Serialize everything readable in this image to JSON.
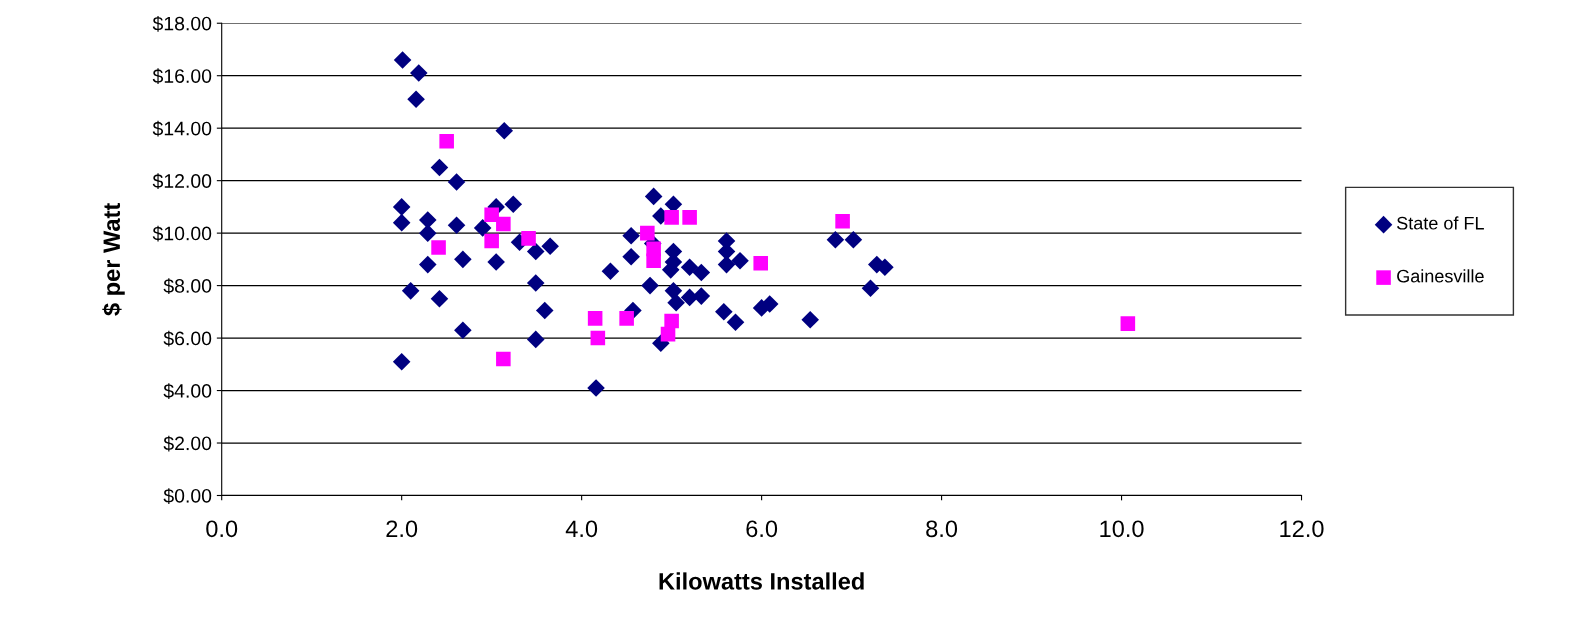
{
  "chart_data": {
    "type": "scatter",
    "xlabel": "Kilowatts Installed",
    "ylabel": "$ per Watt",
    "xlim": [
      0,
      12
    ],
    "xticks": [
      {
        "value": 0,
        "label": "0.0"
      },
      {
        "value": 2,
        "label": "2.0"
      },
      {
        "value": 4,
        "label": "4.0"
      },
      {
        "value": 6,
        "label": "6.0"
      },
      {
        "value": 8,
        "label": "8.0"
      },
      {
        "value": 10,
        "label": "10.0"
      },
      {
        "value": 12,
        "label": "12.0"
      }
    ],
    "ylim": [
      0,
      18
    ],
    "yticks": [
      {
        "value": 0,
        "label": "$0.00"
      },
      {
        "value": 2,
        "label": "$2.00"
      },
      {
        "value": 4,
        "label": "$4.00"
      },
      {
        "value": 6,
        "label": "$6.00"
      },
      {
        "value": 8,
        "label": "$8.00"
      },
      {
        "value": 10,
        "label": "$10.00"
      },
      {
        "value": 12,
        "label": "$12.00"
      },
      {
        "value": 14,
        "label": "$14.00"
      },
      {
        "value": 16,
        "label": "$16.00"
      },
      {
        "value": 18,
        "label": "$18.00"
      }
    ],
    "grid": "y",
    "legend": "right",
    "series": [
      {
        "name": "State of FL",
        "color": "#000080",
        "marker": "diamond",
        "x": [
          2.01,
          2.19,
          2.16,
          3.14,
          2.42,
          2.61,
          2.0,
          2.0,
          2.29,
          2.29,
          2.61,
          2.9,
          3.05,
          3.24,
          2.29,
          2.68,
          3.05,
          2.1,
          2.42,
          2.68,
          2.0,
          3.31,
          3.49,
          3.65,
          3.49,
          3.59,
          3.49,
          4.16,
          4.32,
          4.8,
          5.02,
          4.88,
          4.55,
          4.55,
          4.79,
          4.76,
          4.57,
          4.88,
          5.02,
          5.02,
          4.99,
          5.02,
          5.05,
          5.2,
          5.33,
          5.2,
          5.33,
          5.61,
          5.61,
          5.61,
          5.76,
          5.58,
          5.71,
          6.0,
          6.09,
          6.54,
          6.82,
          7.02,
          7.21,
          7.28,
          7.37
        ],
        "values": [
          16.6,
          16.1,
          15.1,
          13.9,
          12.5,
          11.95,
          11.0,
          10.4,
          10.5,
          10.0,
          10.3,
          10.2,
          11.0,
          11.1,
          8.8,
          9.0,
          8.9,
          7.8,
          7.5,
          6.3,
          5.1,
          9.65,
          9.3,
          9.5,
          8.1,
          7.05,
          5.95,
          4.1,
          8.55,
          11.4,
          11.1,
          10.65,
          9.9,
          9.1,
          9.6,
          8.0,
          7.05,
          5.8,
          9.3,
          8.9,
          8.6,
          7.8,
          7.35,
          8.7,
          8.5,
          7.55,
          7.6,
          9.7,
          9.3,
          8.8,
          8.95,
          7.0,
          6.6,
          7.15,
          7.3,
          6.7,
          9.75,
          9.75,
          7.9,
          8.8,
          8.7
        ]
      },
      {
        "name": "Gainesville",
        "color": "#ff00ff",
        "marker": "square",
        "x": [
          2.5,
          2.41,
          3.0,
          3.13,
          3.0,
          3.41,
          3.13,
          4.15,
          4.18,
          4.5,
          4.73,
          4.8,
          4.8,
          5.0,
          5.2,
          5.0,
          4.96,
          5.99,
          6.9,
          10.07
        ],
        "values": [
          13.5,
          9.45,
          10.7,
          10.35,
          9.7,
          9.8,
          5.2,
          6.75,
          6.0,
          6.75,
          10.0,
          9.4,
          8.95,
          10.6,
          10.6,
          6.65,
          6.15,
          8.85,
          10.45,
          6.55
        ]
      }
    ]
  }
}
